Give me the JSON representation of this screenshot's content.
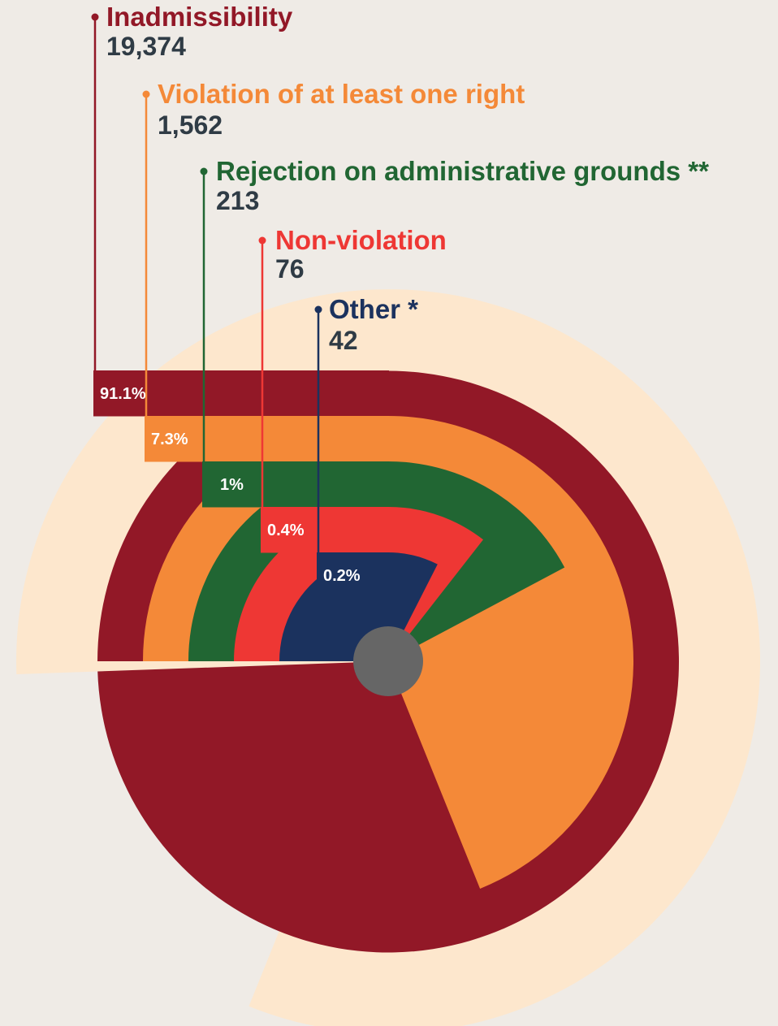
{
  "chart_data": {
    "type": "pie",
    "style": "radial-bar",
    "categories": [
      {
        "name": "Inadmissibility",
        "value": 19374,
        "value_label": "19,374",
        "percent": 91.1,
        "percent_label": "91.1%",
        "color": "#921827"
      },
      {
        "name": "Violation of at least one right",
        "value": 1562,
        "value_label": "1,562",
        "percent": 7.3,
        "percent_label": "7.3%",
        "color": "#f48938"
      },
      {
        "name": "Rejection on administrative grounds **",
        "value": 213,
        "value_label": "213",
        "percent": 1,
        "percent_label": "1%",
        "color": "#216633"
      },
      {
        "name": "Non-violation",
        "value": 76,
        "value_label": "76",
        "percent": 0.4,
        "percent_label": "0.4%",
        "color": "#ee3734"
      },
      {
        "name": "Other *",
        "value": 42,
        "value_label": "42",
        "percent": 0.2,
        "percent_label": "0.2%",
        "color": "#1b325e"
      }
    ],
    "value_text_color": "#2f3b45",
    "background_ring_color": "#fde7cd",
    "center_color": "#666666"
  }
}
